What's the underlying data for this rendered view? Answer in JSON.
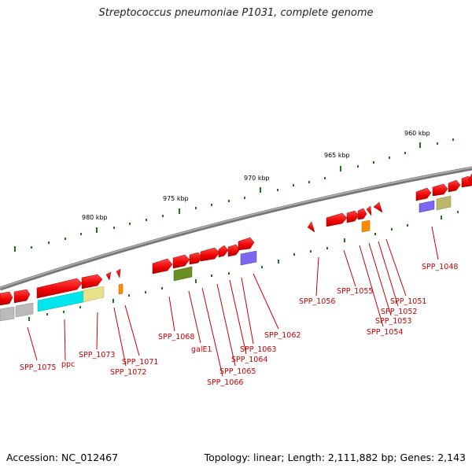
{
  "title": "Streptococcus pneumoniae P1031, complete genome",
  "footer": {
    "accession": "Accession: NC_012467",
    "summary": "Topology: linear; Length: 2,111,882 bp; Genes: 2,143"
  },
  "scale_labels": [
    "980 kbp",
    "975 kbp",
    "970 kbp",
    "965 kbp",
    "960 kbp"
  ],
  "gene_labels": [
    "SPP_1075",
    "ppc",
    "SPP_1073",
    "SPP_1072",
    "SPP_1071",
    "SPP_1068",
    "galE1",
    "SPP_1066",
    "SPP_1065",
    "SPP_1064",
    "SPP_1063",
    "SPP_1062",
    "SPP_1056",
    "SPP_1055",
    "SPP_1054",
    "SPP_1053",
    "SPP_1052",
    "SPP_1051",
    "SPP_1048"
  ],
  "colors": {
    "gene_red": "#ff1a1a",
    "gene_red_dark": "#b80000",
    "backbone": "#8a8a8a",
    "tick_green": "#1a7a1a",
    "label_red": "#cc0000",
    "cyan": "#00e5ee",
    "khaki": "#e8e08a",
    "orange": "#ff8c00",
    "olive": "#6b8e23",
    "slate": "#7b68ee",
    "olive_light": "#bdb76b",
    "grey": "#bbbbbb"
  }
}
